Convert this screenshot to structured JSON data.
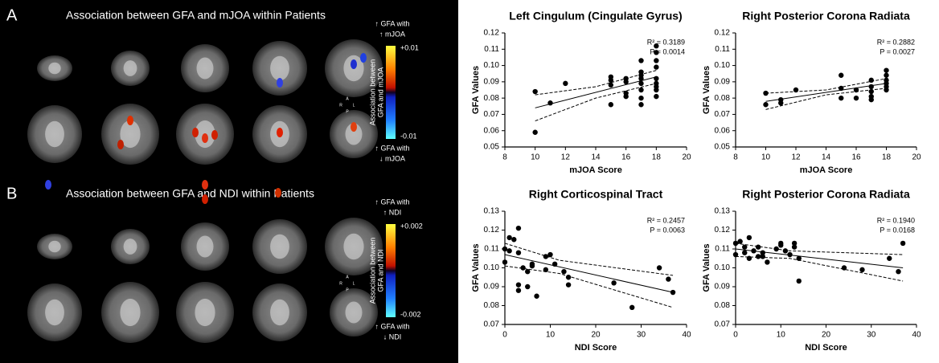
{
  "panels": [
    {
      "letter": "A",
      "title": "Association between GFA and mJOA within Patients",
      "top_note": [
        "↑ GFA with",
        "↑ mJOA"
      ],
      "bottom_note": [
        "↑ GFA with",
        "↓ mJOA"
      ],
      "scale_max": "+0.01",
      "scale_min": "-0.01",
      "scale_label": [
        "Association between",
        "GFA and mJOA"
      ],
      "orientation": [
        "A",
        "R",
        "L",
        "P"
      ]
    },
    {
      "letter": "B",
      "title": "Association between GFA and NDI within Patients",
      "top_note": [
        "↑ GFA with",
        "↑ NDI"
      ],
      "bottom_note": [
        "↑ GFA with",
        "↓ NDI"
      ],
      "scale_max": "+0.002",
      "scale_min": "-0.002",
      "scale_label": [
        "Association between",
        "GFA and NDI"
      ],
      "orientation": [
        "A",
        "R",
        "L",
        "P"
      ]
    }
  ],
  "chart_data": [
    {
      "type": "scatter",
      "title": "Left Cingulum (Cingulate Gyrus)",
      "x_label": "mJOA Score",
      "y_label": "GFA Values",
      "annotations": [
        "R² = 0.3189",
        "P   = 0.0014"
      ],
      "color": "#000000",
      "xlim": [
        8,
        20
      ],
      "xticks": [
        8,
        10,
        12,
        14,
        16,
        18,
        20
      ],
      "ylim": [
        0.05,
        0.12
      ],
      "yticks": [
        0.05,
        0.06,
        0.07,
        0.08,
        0.09,
        {
          "value": 0.1,
          "label": "0.10"
        },
        0.11,
        0.12
      ],
      "x": [
        10,
        10,
        11,
        12,
        15,
        15,
        15,
        15,
        16,
        16,
        16,
        16,
        17,
        17,
        17,
        17,
        17,
        17,
        17,
        17,
        18,
        18,
        18,
        18,
        18,
        18,
        18,
        18,
        18
      ],
      "values": [
        0.084,
        0.059,
        0.077,
        0.089,
        0.076,
        0.088,
        0.091,
        0.093,
        0.081,
        0.083,
        0.09,
        0.092,
        0.076,
        0.08,
        0.085,
        0.089,
        0.092,
        0.094,
        0.096,
        0.103,
        0.081,
        0.085,
        0.087,
        0.089,
        0.092,
        0.099,
        0.103,
        0.108,
        0.112
      ],
      "fit": {
        "x": [
          10,
          18
        ],
        "values": [
          0.074,
          0.093
        ]
      },
      "ci_upper": {
        "x": [
          10,
          14,
          18
        ],
        "values": [
          0.082,
          0.087,
          0.097
        ]
      },
      "ci_lower": {
        "x": [
          10,
          14,
          18
        ],
        "values": [
          0.066,
          0.08,
          0.089
        ]
      }
    },
    {
      "type": "scatter",
      "title": "Right Posterior Corona Radiata",
      "x_label": "mJOA Score",
      "y_label": "GFA Values",
      "annotations": [
        "R² = 0.2882",
        "P   = 0.0027"
      ],
      "color": "#000000",
      "xlim": [
        8,
        20
      ],
      "xticks": [
        8,
        10,
        12,
        14,
        16,
        18,
        20
      ],
      "ylim": [
        0.05,
        0.12
      ],
      "yticks": [
        0.05,
        0.06,
        0.07,
        0.08,
        0.09,
        {
          "value": 0.1,
          "label": "0.10"
        },
        0.11,
        0.12
      ],
      "x": [
        10,
        10,
        11,
        11,
        12,
        15,
        15,
        15,
        16,
        16,
        17,
        17,
        17,
        17,
        17,
        18,
        18,
        18,
        18,
        18,
        18
      ],
      "values": [
        0.083,
        0.076,
        0.079,
        0.077,
        0.085,
        0.094,
        0.086,
        0.08,
        0.085,
        0.08,
        0.091,
        0.087,
        0.084,
        0.081,
        0.079,
        0.097,
        0.094,
        0.091,
        0.089,
        0.087,
        0.085
      ],
      "fit": {
        "x": [
          10,
          18
        ],
        "values": [
          0.078,
          0.089
        ]
      },
      "ci_upper": {
        "x": [
          10,
          14,
          18
        ],
        "values": [
          0.083,
          0.085,
          0.092
        ]
      },
      "ci_lower": {
        "x": [
          10,
          14,
          18
        ],
        "values": [
          0.073,
          0.082,
          0.086
        ]
      }
    },
    {
      "type": "scatter",
      "title": "Right Corticospinal Tract",
      "x_label": "NDI Score",
      "y_label": "GFA Values",
      "annotations": [
        "R² = 0.2457",
        "P   = 0.0063"
      ],
      "color": "#000000",
      "xlim": [
        0,
        40
      ],
      "xticks": [
        0,
        10,
        20,
        30,
        40
      ],
      "ylim": [
        0.07,
        0.13
      ],
      "yticks": [
        0.07,
        0.08,
        0.09,
        {
          "value": 0.1,
          "label": "0.10"
        },
        0.11,
        0.12,
        0.13
      ],
      "x": [
        0,
        0,
        1,
        1,
        2,
        3,
        3,
        3,
        3,
        4,
        5,
        5,
        6,
        6,
        7,
        9,
        9,
        10,
        11,
        13,
        14,
        14,
        24,
        28,
        34,
        36,
        37
      ],
      "values": [
        0.103,
        0.11,
        0.109,
        0.116,
        0.115,
        0.121,
        0.108,
        0.091,
        0.088,
        0.1,
        0.098,
        0.09,
        0.102,
        0.101,
        0.085,
        0.106,
        0.099,
        0.107,
        0.102,
        0.098,
        0.095,
        0.091,
        0.092,
        0.079,
        0.1,
        0.094,
        0.087
      ],
      "fit": {
        "x": [
          0,
          37
        ],
        "values": [
          0.107,
          0.087
        ]
      },
      "ci_upper": {
        "x": [
          0,
          12,
          37
        ],
        "values": [
          0.113,
          0.104,
          0.096
        ]
      },
      "ci_lower": {
        "x": [
          0,
          12,
          37
        ],
        "values": [
          0.101,
          0.097,
          0.079
        ]
      }
    },
    {
      "type": "scatter",
      "title": "Right Posterior Corona Radiata",
      "x_label": "NDI Score",
      "y_label": "GFA Values",
      "annotations": [
        "R² = 0.1940",
        "P   = 0.0168"
      ],
      "color": "#000000",
      "xlim": [
        0,
        40
      ],
      "xticks": [
        0,
        10,
        20,
        30,
        40
      ],
      "ylim": [
        0.07,
        0.13
      ],
      "yticks": [
        0.07,
        0.08,
        0.09,
        {
          "value": 0.1,
          "label": "0.10"
        },
        0.11,
        0.12,
        0.13
      ],
      "x": [
        0,
        0,
        1,
        2,
        2,
        3,
        3,
        4,
        5,
        5,
        6,
        6,
        7,
        9,
        10,
        10,
        11,
        12,
        13,
        13,
        14,
        14,
        24,
        28,
        34,
        36,
        37
      ],
      "values": [
        0.113,
        0.107,
        0.114,
        0.111,
        0.108,
        0.116,
        0.105,
        0.109,
        0.106,
        0.111,
        0.108,
        0.106,
        0.103,
        0.11,
        0.113,
        0.112,
        0.109,
        0.107,
        0.113,
        0.111,
        0.105,
        0.093,
        0.1,
        0.099,
        0.105,
        0.098,
        0.113
      ],
      "fit": {
        "x": [
          0,
          37
        ],
        "values": [
          0.11,
          0.1
        ]
      },
      "ci_upper": {
        "x": [
          0,
          12,
          37
        ],
        "values": [
          0.113,
          0.109,
          0.107
        ]
      },
      "ci_lower": {
        "x": [
          0,
          12,
          37
        ],
        "values": [
          0.106,
          0.105,
          0.093
        ]
      }
    }
  ]
}
